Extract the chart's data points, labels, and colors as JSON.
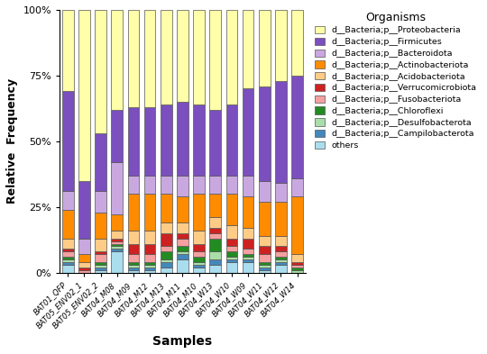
{
  "samples": [
    "BAT01_QFP",
    "BAT05_ENV02_1",
    "BAT05_ENV02_2",
    "BAT04_M08",
    "BAT04_M09",
    "BAT04_M12",
    "BAT04_M13",
    "BAT04_M11",
    "BAT04_M10",
    "BAT04_W13",
    "BAT04_W10",
    "BAT04_W09",
    "BAT04_W11",
    "BAT04_W12",
    "BAT04_W14"
  ],
  "organisms": [
    "d__Bacteria;p__Proteobacteria",
    "d__Bacteria;p__Firmicutes",
    "d__Bacteria;p__Bacteroidota",
    "d__Bacteria;p__Actinobacteriota",
    "d__Bacteria;p__Acidobacteriota",
    "d__Bacteria;p__Verrucomicrobiota",
    "d__Bacteria;p__Fusobacteriota",
    "d__Bacteria;p__Chloroflexi",
    "d__Bacteria;p__Desulfobacterota",
    "d__Bacteria;p__Campilobacterota",
    "others"
  ],
  "legend_labels": [
    "d__Bacteria;p__Proteobacteria",
    "d__Bacteria;p__Firmicutes",
    "d__Bacteria;p__Bacteroidota",
    "d__Bacteria;p__Actinobacteriota",
    "d__Bacteria;p__Acidobacteriota",
    "d__Bacteria;p__Verrucomicrobiota",
    "d__Bacteria;p__Fusobacteriota",
    "d__Bacteria;p__Chloroflexi",
    "d__Bacteria;p__Desulfobacterota",
    "d__Bacteria;p__Campilobacterota",
    "others"
  ],
  "colors": [
    "#FFFFAA",
    "#7B4FBE",
    "#C9A8E0",
    "#FF8C00",
    "#FFCC88",
    "#CC2222",
    "#F4A0A0",
    "#228B22",
    "#AADDAA",
    "#4488BB",
    "#AADDEE"
  ],
  "data": {
    "d__Bacteria;p__Proteobacteria": [
      31,
      65,
      47,
      38,
      37,
      37,
      36,
      35,
      36,
      38,
      36,
      30,
      29,
      27,
      25
    ],
    "d__Bacteria;p__Firmicutes": [
      38,
      22,
      22,
      20,
      26,
      26,
      27,
      28,
      27,
      25,
      27,
      33,
      36,
      39,
      39
    ],
    "d__Bacteria;p__Bacteroidota": [
      7,
      6,
      8,
      20,
      7,
      7,
      7,
      8,
      7,
      7,
      7,
      8,
      8,
      7,
      7
    ],
    "d__Bacteria;p__Actinobacteriota": [
      11,
      3,
      10,
      6,
      14,
      14,
      11,
      10,
      14,
      9,
      12,
      12,
      13,
      13,
      22
    ],
    "d__Bacteria;p__Acidobacteriota": [
      4,
      2,
      5,
      3,
      5,
      5,
      4,
      4,
      5,
      4,
      5,
      4,
      4,
      4,
      3
    ],
    "d__Bacteria;p__Verrucomicrobiota": [
      1,
      1,
      1,
      1,
      4,
      4,
      5,
      2,
      3,
      2,
      3,
      4,
      3,
      2,
      1
    ],
    "d__Bacteria;p__Fusobacteriota": [
      2,
      1,
      3,
      1,
      3,
      3,
      2,
      3,
      2,
      2,
      2,
      2,
      3,
      2,
      1
    ],
    "d__Bacteria;p__Chloroflexi": [
      1,
      0,
      1,
      1,
      1,
      1,
      3,
      2,
      2,
      5,
      2,
      1,
      1,
      1,
      1
    ],
    "d__Bacteria;p__Desulfobacterota": [
      1,
      0,
      1,
      1,
      1,
      1,
      1,
      1,
      1,
      3,
      1,
      1,
      1,
      1,
      1
    ],
    "d__Bacteria;p__Campilobacterota": [
      1,
      0,
      1,
      1,
      1,
      1,
      2,
      2,
      1,
      2,
      1,
      1,
      1,
      1,
      0
    ],
    "others": [
      3,
      0,
      1,
      8,
      1,
      1,
      2,
      5,
      2,
      3,
      4,
      4,
      1,
      3,
      0
    ]
  },
  "title": "Organisms",
  "xlabel": "Samples",
  "ylabel": "Relative  Frequency",
  "yticks": [
    0,
    25,
    50,
    75,
    100
  ],
  "ytick_labels": [
    "0%",
    "25%",
    "50%",
    "75%",
    "100%"
  ]
}
